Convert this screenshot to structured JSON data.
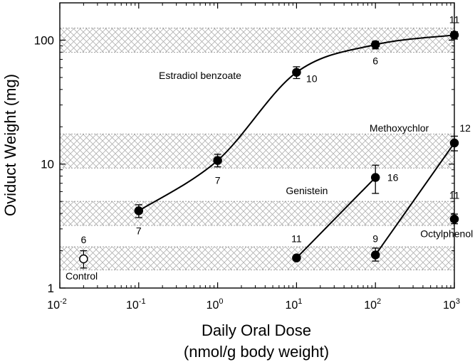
{
  "chart_data": {
    "type": "scatter",
    "xlabel": "Daily Oral Dose",
    "xlabel_unit": "(nmol/g body weight)",
    "ylabel": "Oviduct Weight (mg)",
    "x_scale": "log",
    "y_scale": "log",
    "xlim": [
      0.01,
      1000
    ],
    "ylim": [
      1,
      200
    ],
    "x_ticks": [
      {
        "value": 0.01,
        "base": "10",
        "exp": "-2"
      },
      {
        "value": 0.1,
        "base": "10",
        "exp": "-1"
      },
      {
        "value": 1,
        "base": "10",
        "exp": "0"
      },
      {
        "value": 10,
        "base": "10",
        "exp": "1"
      },
      {
        "value": 100,
        "base": "10",
        "exp": "2"
      },
      {
        "value": 1000,
        "base": "10",
        "exp": "3"
      }
    ],
    "y_ticks": [
      {
        "value": 1,
        "label": "1"
      },
      {
        "value": 10,
        "label": "10"
      },
      {
        "value": 100,
        "label": "100"
      }
    ],
    "grid": false,
    "bands": [
      {
        "y_low": 80,
        "y_high": 125
      },
      {
        "y_low": 9.3,
        "y_high": 17.5
      },
      {
        "y_low": 3.2,
        "y_high": 5.0
      },
      {
        "y_low": 1.4,
        "y_high": 2.15
      }
    ],
    "series": [
      {
        "name": "Control",
        "filled": false,
        "connected": false,
        "label_pos": [
          0.02,
          1.25
        ],
        "points": [
          {
            "x": 0.02,
            "y": 1.72,
            "err_low": 1.45,
            "err_high": 2.0,
            "n": "6",
            "n_pos": [
              0.02,
              2.45
            ]
          }
        ]
      },
      {
        "name": "Estradiol benzoate",
        "filled": true,
        "connected": true,
        "smooth": true,
        "label_pos": [
          2.0,
          52
        ],
        "points": [
          {
            "x": 0.1,
            "y": 4.2,
            "err_low": 3.7,
            "err_high": 4.7,
            "n": "7",
            "n_pos": [
              0.1,
              2.9
            ]
          },
          {
            "x": 1,
            "y": 10.7,
            "err_low": 9.5,
            "err_high": 12.0,
            "n": "7",
            "n_pos": [
              1,
              7.4
            ]
          },
          {
            "x": 10,
            "y": 55,
            "err_low": 49,
            "err_high": 61,
            "n": "10",
            "n_pos": [
              15,
              49
            ]
          },
          {
            "x": 100,
            "y": 92,
            "err_low": 85,
            "err_high": 98,
            "n": "6",
            "n_pos": [
              100,
              68
            ]
          },
          {
            "x": 1000,
            "y": 110,
            "err_low": 102,
            "err_high": 117,
            "n": "11",
            "n_pos": [
              1000,
              147
            ]
          }
        ]
      },
      {
        "name": "Genistein",
        "filled": true,
        "connected": true,
        "label_pos": [
          25,
          6.1
        ],
        "points": [
          {
            "x": 10,
            "y": 1.75,
            "err_low": 1.68,
            "err_high": 1.82,
            "n": "11",
            "n_pos": [
              10,
              2.5
            ]
          },
          {
            "x": 100,
            "y": 7.8,
            "err_low": 5.8,
            "err_high": 9.8,
            "n": "16",
            "n_pos": [
              160,
              7.8
            ]
          }
        ]
      },
      {
        "name": "Methoxychlor",
        "filled": true,
        "connected": true,
        "label_pos": [
          200,
          19.5
        ],
        "points": [
          {
            "x": 100,
            "y": 1.85,
            "err_low": 1.65,
            "err_high": 2.1,
            "n": "9",
            "n_pos": [
              100,
              2.5
            ]
          },
          {
            "x": 1000,
            "y": 14.8,
            "err_low": 12.8,
            "err_high": 16.8,
            "n": "12",
            "n_pos": [
              1320,
              19.5
            ]
          }
        ]
      },
      {
        "name": "Octylphenol",
        "filled": true,
        "connected": false,
        "label_pos": [
          800,
          2.75
        ],
        "points": [
          {
            "x": 1000,
            "y": 3.6,
            "err_low": 3.3,
            "err_high": 3.95,
            "n": "11",
            "n_pos": [
              1000,
              5.6
            ]
          }
        ]
      }
    ]
  }
}
